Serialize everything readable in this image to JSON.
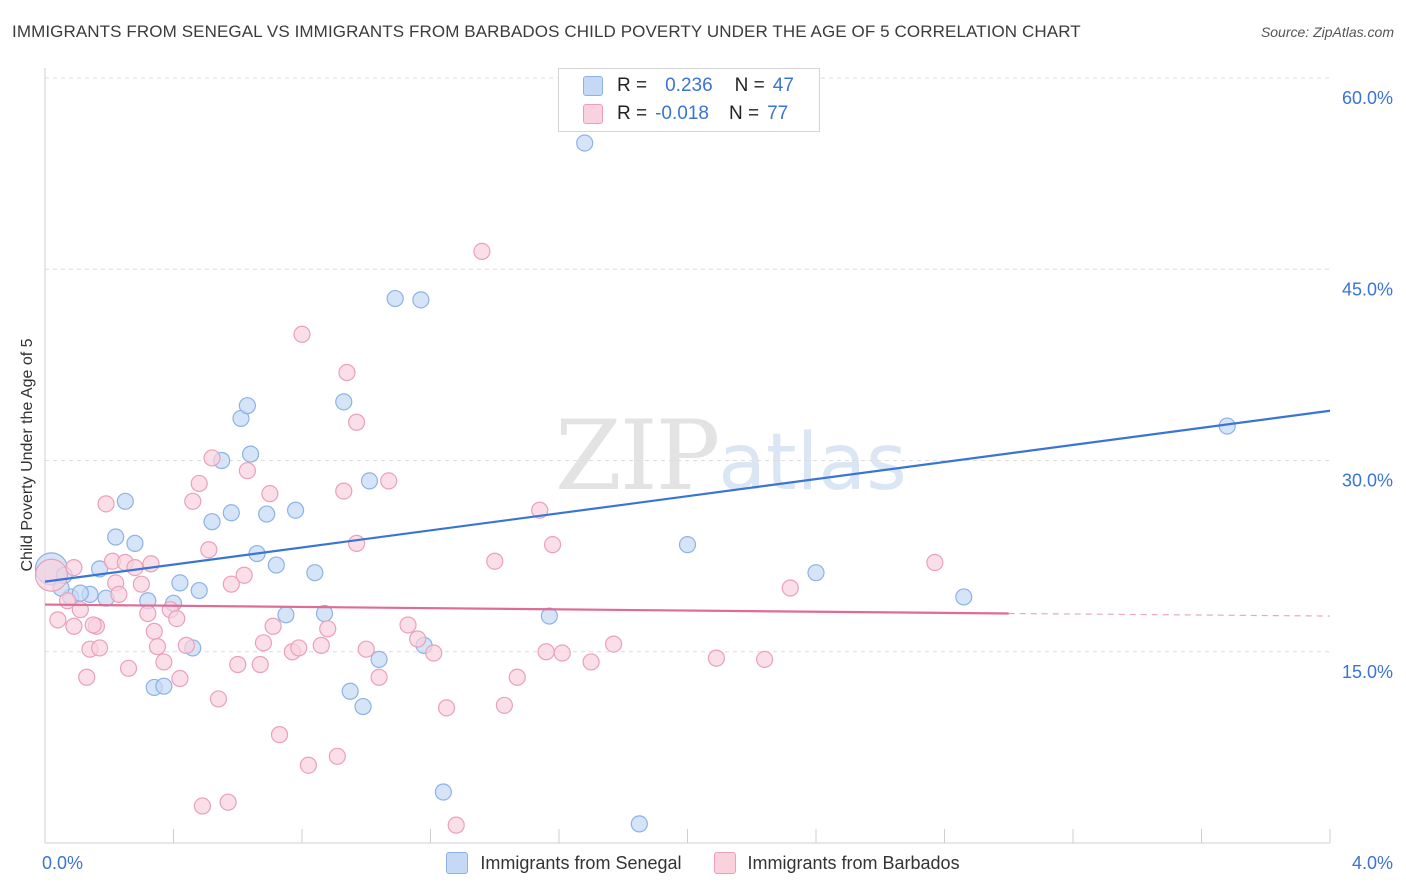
{
  "title": "IMMIGRANTS FROM SENEGAL VS IMMIGRANTS FROM BARBADOS CHILD POVERTY UNDER THE AGE OF 5 CORRELATION CHART",
  "source": "Source: ZipAtlas.com",
  "watermark": {
    "zip": "ZIP",
    "atlas": "atlas"
  },
  "legend_top": [
    {
      "r_label": "R =",
      "r_value": "0.236",
      "n_label": "N =",
      "n_value": "47",
      "color": "#b7cff3",
      "border": "#7ea6e0"
    },
    {
      "r_label": "R =",
      "r_value": "-0.018",
      "n_label": "N =",
      "n_value": "77",
      "color": "#f8c6d6",
      "border": "#e99ab5"
    }
  ],
  "colors": {
    "senegal_fill": "#c5d8f5",
    "senegal_stroke": "#8db2e6",
    "senegal_line": "#3a74d4",
    "barbados_fill": "#f9d2de",
    "barbados_stroke": "#eaa0ba",
    "barbados_line": "#e06b95",
    "tick_label": "#3a74d4"
  },
  "chart_data": {
    "type": "scatter",
    "title": "IMMIGRANTS FROM SENEGAL VS IMMIGRANTS FROM BARBADOS CHILD POVERTY UNDER THE AGE OF 5 CORRELATION CHART",
    "xlabel": "",
    "ylabel": "Child Poverty Under the Age of 5",
    "xlim": [
      0.0,
      4.0
    ],
    "ylim": [
      0.0,
      60.0
    ],
    "x_tick_labels": [
      "0.0%",
      "4.0%"
    ],
    "y_ticks": [
      15.0,
      30.0,
      45.0,
      60.0
    ],
    "y_tick_labels": [
      "15.0%",
      "30.0%",
      "45.0%",
      "60.0%"
    ],
    "grid": true,
    "legend_placement": "bottom",
    "series": [
      {
        "name": "Immigrants from Senegal",
        "trend": {
          "x": [
            0.0,
            4.0
          ],
          "y": [
            20.5,
            33.9
          ]
        },
        "points": [
          {
            "x": 0.02,
            "y": 21.5,
            "big": true
          },
          {
            "x": 0.08,
            "y": 19.3
          },
          {
            "x": 0.14,
            "y": 19.5
          },
          {
            "x": 0.17,
            "y": 21.5
          },
          {
            "x": 0.19,
            "y": 19.2
          },
          {
            "x": 0.22,
            "y": 24.0
          },
          {
            "x": 0.25,
            "y": 26.8
          },
          {
            "x": 0.28,
            "y": 23.5
          },
          {
            "x": 0.32,
            "y": 19.0
          },
          {
            "x": 0.34,
            "y": 12.2
          },
          {
            "x": 0.37,
            "y": 12.3
          },
          {
            "x": 0.4,
            "y": 18.8
          },
          {
            "x": 0.42,
            "y": 20.4
          },
          {
            "x": 0.46,
            "y": 15.3
          },
          {
            "x": 0.48,
            "y": 19.8
          },
          {
            "x": 0.52,
            "y": 25.2
          },
          {
            "x": 0.55,
            "y": 30.0
          },
          {
            "x": 0.58,
            "y": 25.9
          },
          {
            "x": 0.61,
            "y": 33.3
          },
          {
            "x": 0.63,
            "y": 34.3
          },
          {
            "x": 0.64,
            "y": 30.5
          },
          {
            "x": 0.66,
            "y": 22.7
          },
          {
            "x": 0.69,
            "y": 25.8
          },
          {
            "x": 0.72,
            "y": 21.8
          },
          {
            "x": 0.75,
            "y": 17.9
          },
          {
            "x": 0.78,
            "y": 26.1
          },
          {
            "x": 0.84,
            "y": 21.2
          },
          {
            "x": 0.87,
            "y": 18.0
          },
          {
            "x": 0.93,
            "y": 34.6
          },
          {
            "x": 0.95,
            "y": 11.9
          },
          {
            "x": 0.99,
            "y": 10.7
          },
          {
            "x": 1.01,
            "y": 28.4
          },
          {
            "x": 1.04,
            "y": 14.4
          },
          {
            "x": 1.09,
            "y": 42.7
          },
          {
            "x": 1.17,
            "y": 42.6
          },
          {
            "x": 1.18,
            "y": 15.5
          },
          {
            "x": 1.24,
            "y": 4.0
          },
          {
            "x": 1.57,
            "y": 17.8
          },
          {
            "x": 1.68,
            "y": 54.9
          },
          {
            "x": 1.85,
            "y": 1.5
          },
          {
            "x": 2.0,
            "y": 23.4
          },
          {
            "x": 2.4,
            "y": 21.2
          },
          {
            "x": 2.86,
            "y": 19.3
          },
          {
            "x": 3.68,
            "y": 32.7
          },
          {
            "x": 0.05,
            "y": 20.0
          },
          {
            "x": 0.11,
            "y": 19.6
          },
          {
            "x": 0.06,
            "y": 21.0
          }
        ]
      },
      {
        "name": "Immigrants from Barbados",
        "trend": {
          "x": [
            0.0,
            3.0
          ],
          "y": [
            18.7,
            18.0
          ]
        },
        "trend_dashed": {
          "x": [
            3.0,
            4.0
          ],
          "y": [
            18.0,
            17.8
          ]
        },
        "points": [
          {
            "x": 0.02,
            "y": 21.0,
            "big": true
          },
          {
            "x": 0.04,
            "y": 17.5
          },
          {
            "x": 0.07,
            "y": 19.0
          },
          {
            "x": 0.09,
            "y": 17.0
          },
          {
            "x": 0.11,
            "y": 18.3
          },
          {
            "x": 0.13,
            "y": 13.0
          },
          {
            "x": 0.14,
            "y": 15.2
          },
          {
            "x": 0.16,
            "y": 17.0
          },
          {
            "x": 0.17,
            "y": 15.3
          },
          {
            "x": 0.19,
            "y": 26.6
          },
          {
            "x": 0.21,
            "y": 22.1
          },
          {
            "x": 0.22,
            "y": 20.4
          },
          {
            "x": 0.23,
            "y": 19.5
          },
          {
            "x": 0.25,
            "y": 22.0
          },
          {
            "x": 0.26,
            "y": 13.7
          },
          {
            "x": 0.28,
            "y": 21.6
          },
          {
            "x": 0.3,
            "y": 20.3
          },
          {
            "x": 0.32,
            "y": 18.0
          },
          {
            "x": 0.34,
            "y": 16.6
          },
          {
            "x": 0.35,
            "y": 15.4
          },
          {
            "x": 0.37,
            "y": 14.2
          },
          {
            "x": 0.39,
            "y": 18.3
          },
          {
            "x": 0.41,
            "y": 17.6
          },
          {
            "x": 0.42,
            "y": 12.9
          },
          {
            "x": 0.44,
            "y": 15.5
          },
          {
            "x": 0.46,
            "y": 26.8
          },
          {
            "x": 0.48,
            "y": 28.2
          },
          {
            "x": 0.49,
            "y": 2.9
          },
          {
            "x": 0.51,
            "y": 23.0
          },
          {
            "x": 0.52,
            "y": 30.2
          },
          {
            "x": 0.54,
            "y": 11.3
          },
          {
            "x": 0.57,
            "y": 3.2
          },
          {
            "x": 0.58,
            "y": 20.3
          },
          {
            "x": 0.6,
            "y": 14.0
          },
          {
            "x": 0.62,
            "y": 21.0
          },
          {
            "x": 0.63,
            "y": 29.2
          },
          {
            "x": 0.67,
            "y": 14.0
          },
          {
            "x": 0.68,
            "y": 15.7
          },
          {
            "x": 0.7,
            "y": 27.4
          },
          {
            "x": 0.71,
            "y": 17.0
          },
          {
            "x": 0.73,
            "y": 8.5
          },
          {
            "x": 0.77,
            "y": 15.0
          },
          {
            "x": 0.8,
            "y": 39.9
          },
          {
            "x": 0.82,
            "y": 6.1
          },
          {
            "x": 0.86,
            "y": 15.5
          },
          {
            "x": 0.88,
            "y": 16.8
          },
          {
            "x": 0.91,
            "y": 6.8
          },
          {
            "x": 0.93,
            "y": 27.6
          },
          {
            "x": 0.94,
            "y": 36.9
          },
          {
            "x": 0.97,
            "y": 33.0
          },
          {
            "x": 1.0,
            "y": 15.2
          },
          {
            "x": 1.04,
            "y": 13.0
          },
          {
            "x": 1.07,
            "y": 28.4
          },
          {
            "x": 1.13,
            "y": 17.1
          },
          {
            "x": 1.16,
            "y": 16.0
          },
          {
            "x": 1.21,
            "y": 14.9
          },
          {
            "x": 1.25,
            "y": 10.6
          },
          {
            "x": 1.28,
            "y": 1.4
          },
          {
            "x": 1.36,
            "y": 46.4
          },
          {
            "x": 1.4,
            "y": 22.1
          },
          {
            "x": 1.43,
            "y": 10.8
          },
          {
            "x": 1.47,
            "y": 13.0
          },
          {
            "x": 1.54,
            "y": 26.1
          },
          {
            "x": 1.58,
            "y": 23.4
          },
          {
            "x": 1.61,
            "y": 14.9
          },
          {
            "x": 1.7,
            "y": 14.2
          },
          {
            "x": 1.77,
            "y": 15.6
          },
          {
            "x": 2.09,
            "y": 14.5
          },
          {
            "x": 2.24,
            "y": 14.4
          },
          {
            "x": 2.32,
            "y": 20.0
          },
          {
            "x": 2.77,
            "y": 22.0
          },
          {
            "x": 1.56,
            "y": 15.0
          },
          {
            "x": 0.15,
            "y": 17.1
          },
          {
            "x": 0.09,
            "y": 21.6
          },
          {
            "x": 0.33,
            "y": 21.9
          },
          {
            "x": 0.79,
            "y": 15.3
          },
          {
            "x": 0.97,
            "y": 23.5
          }
        ]
      }
    ]
  }
}
